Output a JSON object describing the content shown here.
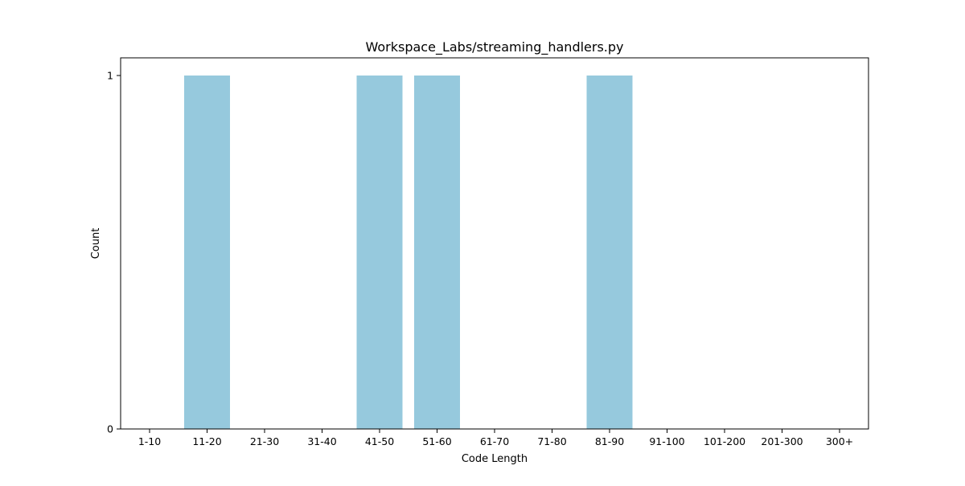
{
  "chart_data": {
    "type": "bar",
    "title": "Workspace_Labs/streaming_handlers.py",
    "xlabel": "Code Length",
    "ylabel": "Count",
    "categories": [
      "1-10",
      "11-20",
      "21-30",
      "31-40",
      "41-50",
      "51-60",
      "61-70",
      "71-80",
      "81-90",
      "91-100",
      "101-200",
      "201-300",
      "300+"
    ],
    "values": [
      0,
      1,
      0,
      0,
      1,
      1,
      0,
      0,
      1,
      0,
      0,
      0,
      0
    ],
    "ylim": [
      0,
      1.05
    ],
    "yticks": [
      "0",
      "1"
    ],
    "grid": false,
    "legend": "none",
    "bar_color": "#96c9dd"
  }
}
